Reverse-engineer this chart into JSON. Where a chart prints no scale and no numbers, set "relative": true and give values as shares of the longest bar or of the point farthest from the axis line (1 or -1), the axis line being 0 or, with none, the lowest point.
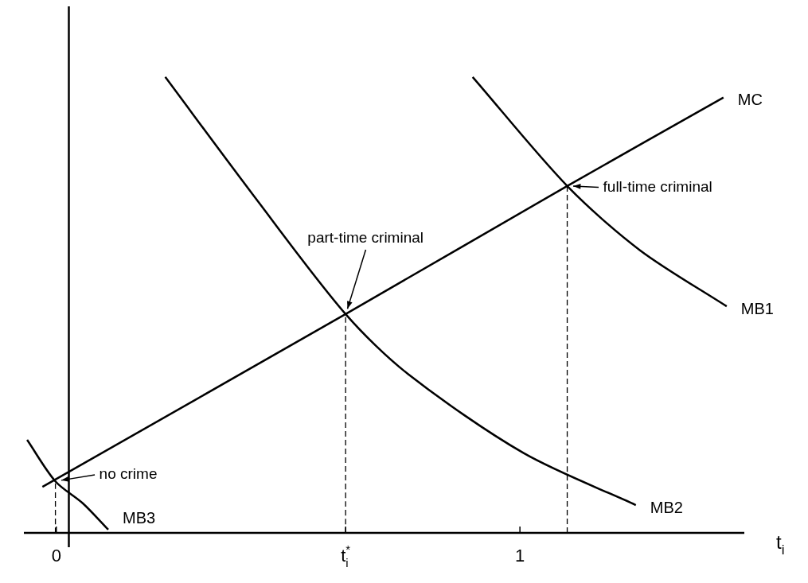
{
  "chart_data": {
    "type": "line",
    "relative": true,
    "xlabel": "t$_{i}$",
    "xlim": [
      -0.07,
      1.484
    ],
    "xticks": [
      {
        "value": 0,
        "label": "0"
      },
      {
        "value": 0.624,
        "label": "t$_{i}$$^{*}$"
      },
      {
        "value": 1,
        "label": "1"
      }
    ],
    "grid": false,
    "legend": false,
    "marker": "none",
    "line_style": "solid",
    "series": [
      {
        "name": "MC",
        "color": "#000000",
        "x": [
          -0.03,
          0.624,
          1.102,
          1.439
        ],
        "values": [
          0.101,
          0.48,
          0.761,
          0.955
        ]
      },
      {
        "name": "MB1",
        "color": "#000000",
        "x": [
          0.898,
          1.102,
          1.259,
          1.446
        ],
        "values": [
          1.0,
          0.761,
          0.62,
          0.497
        ]
      },
      {
        "name": "MB2",
        "color": "#000000",
        "x": [
          0.235,
          0.424,
          0.624,
          0.758,
          1.008,
          1.25
        ],
        "values": [
          1.0,
          0.742,
          0.48,
          0.349,
          0.175,
          0.061
        ]
      },
      {
        "name": "MB3",
        "color": "#000000",
        "x": [
          -0.063,
          -0.002,
          0.057,
          0.112
        ],
        "values": [
          0.204,
          0.113,
          0.065,
          0.007
        ]
      },
      {
        "color": "#000000",
        "line_style": "dashed",
        "x": [
          -0.002,
          -0.002
        ],
        "values": [
          0,
          0.113
        ]
      },
      {
        "color": "#000000",
        "line_style": "dashed",
        "x": [
          0.624,
          0.624
        ],
        "values": [
          0,
          0.48
        ]
      },
      {
        "color": "#000000",
        "line_style": "dashed",
        "x": [
          1.102,
          1.102
        ],
        "values": [
          0,
          0.761
        ]
      }
    ],
    "ref_lines": [
      {
        "axis": "x",
        "value": 0.027,
        "color": "#000000",
        "line_style": "solid"
      }
    ],
    "annotations": [
      {
        "text": "no crime",
        "x": -0.002,
        "y": 0.113
      },
      {
        "text": "part-time criminal",
        "x": 0.624,
        "y": 0.48
      },
      {
        "text": "full-time criminal",
        "x": 1.102,
        "y": 0.761
      }
    ]
  }
}
